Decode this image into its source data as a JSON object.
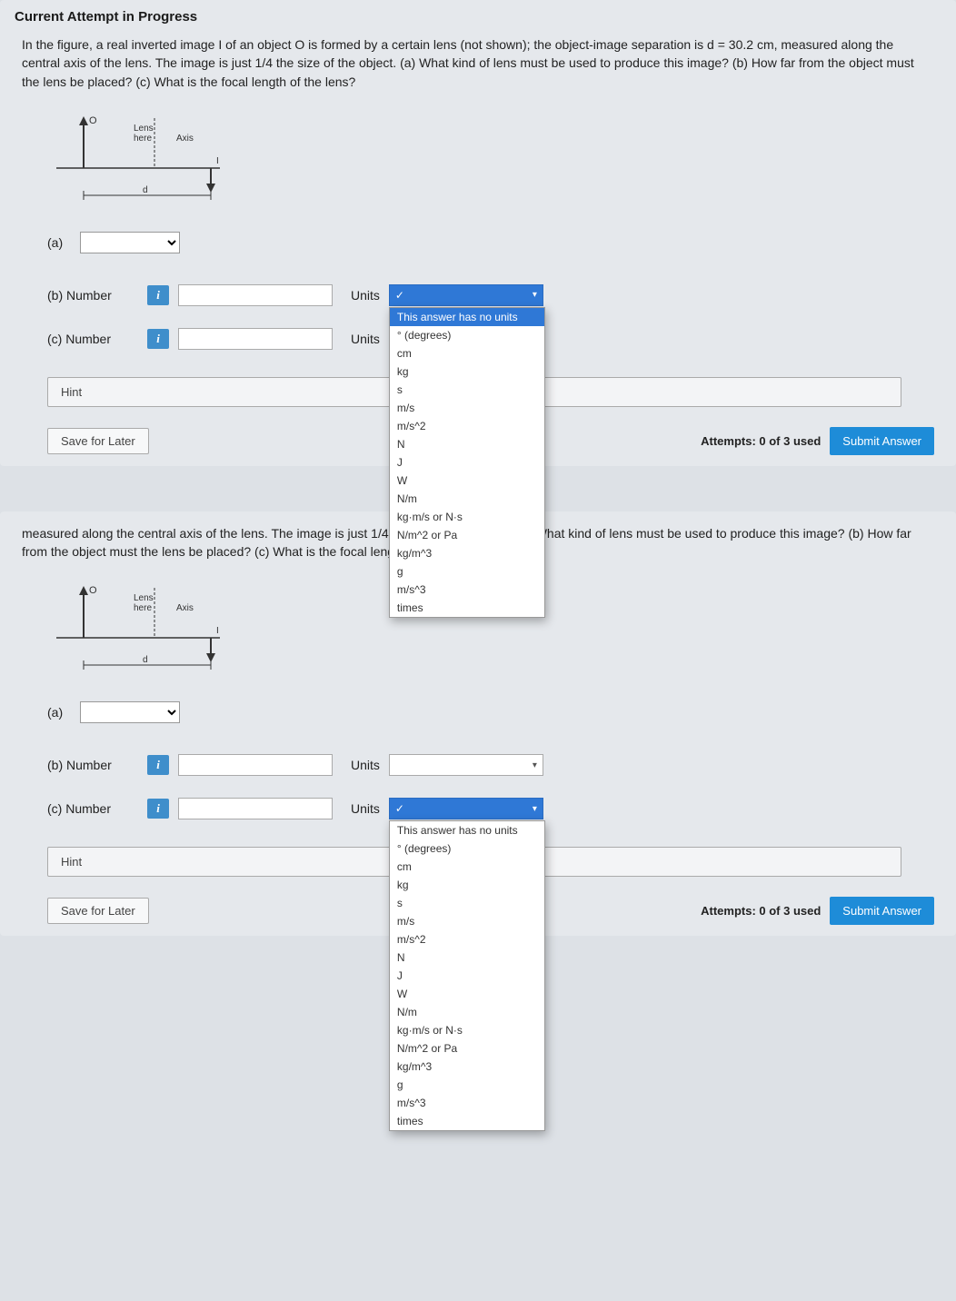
{
  "heading": "Current Attempt in Progress",
  "problem_full": "In the figure, a real inverted image I of an object O is formed by a certain lens (not shown); the object-image separation is d = 30.2 cm, measured along the central axis of the lens. The image is just 1/4 the size of the object. (a) What kind of lens must be used to produce this image? (b) How far from the object must the lens be placed? (c) What is the focal length of the lens?",
  "problem_partial": "measured along the central axis of the lens. The image is just 1/4 the size of the object. (a) What kind of lens must be used to produce this image? (b) How far from the object must the lens be placed? (c) What is the focal length of the lens?",
  "diagram": {
    "o_label": "O",
    "lens_label": "Lens\nhere",
    "axis_label": "Axis",
    "i_label": "I",
    "d_label": "d",
    "line_color": "#333333",
    "arrow_color": "#333333"
  },
  "parts": {
    "a_label": "(a)",
    "b_label": "(b)   Number",
    "c_label": "(c)   Number",
    "units_label": "Units",
    "info_icon": "i"
  },
  "dropdown_check": "✓",
  "units_options": [
    "This answer has no units",
    "° (degrees)",
    "cm",
    "kg",
    "s",
    "m/s",
    "m/s^2",
    "N",
    "J",
    "W",
    "N/m",
    "kg·m/s or N·s",
    "N/m^2 or Pa",
    "kg/m^3",
    "g",
    "m/s^3",
    "times"
  ],
  "hint_label": "Hint",
  "save_label": "Save for Later",
  "attempts_text": "Attempts: 0 of 3 used",
  "submit_label": "Submit Answer"
}
